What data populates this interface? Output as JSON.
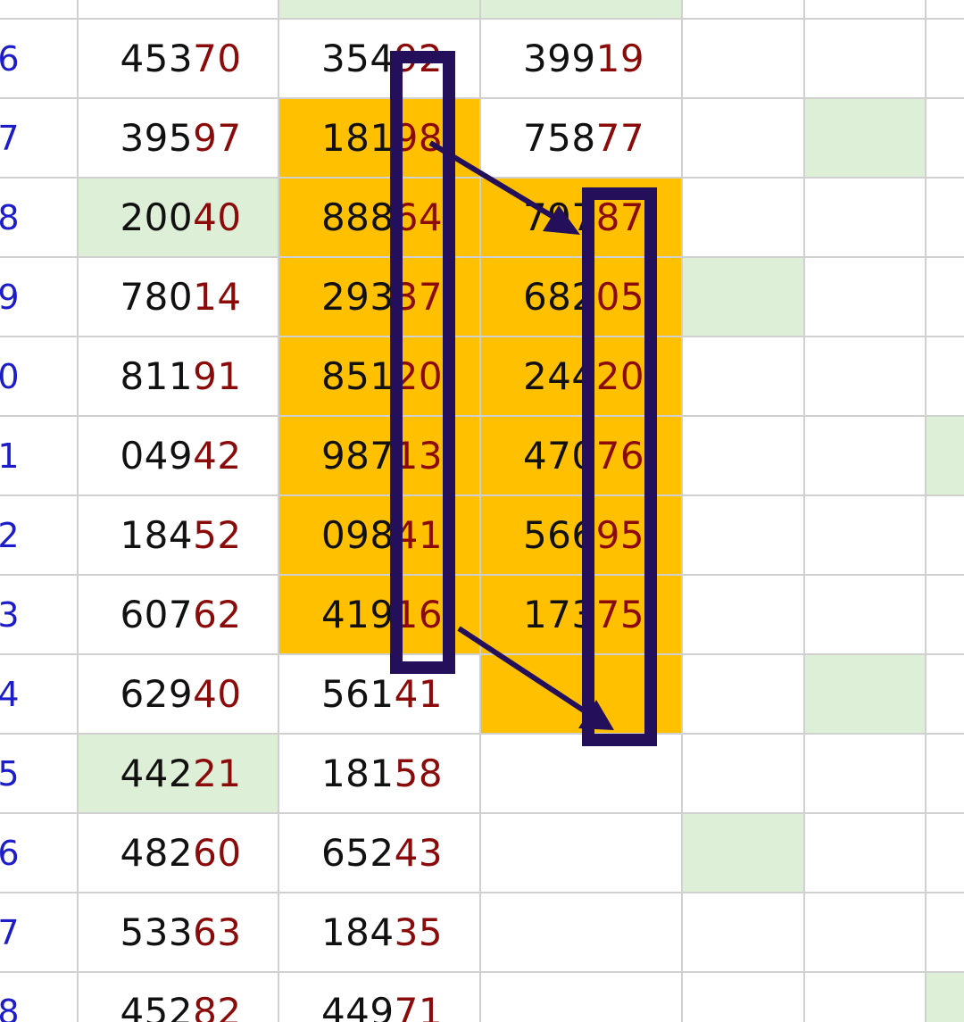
{
  "colors": {
    "highlight": "#ffc000",
    "green_fill": "#deefd8",
    "row_index": "#1c1cc8",
    "tail_digits": "#8b0a0a",
    "annotation": "#24105a"
  },
  "rows": [
    {
      "index": "6",
      "a": {
        "main": "453",
        "tail": "70"
      },
      "b": {
        "main": "354",
        "tail": "92"
      },
      "c": {
        "main": "399",
        "tail": "19"
      }
    },
    {
      "index": "7",
      "a": {
        "main": "395",
        "tail": "97"
      },
      "b": {
        "main": "181",
        "tail": "98"
      },
      "c": {
        "main": "758",
        "tail": "77"
      }
    },
    {
      "index": "8",
      "a": {
        "main": "200",
        "tail": "40"
      },
      "b": {
        "main": "888",
        "tail": "64"
      },
      "c": {
        "main": "797",
        "tail": "87"
      }
    },
    {
      "index": "9",
      "a": {
        "main": "780",
        "tail": "14"
      },
      "b": {
        "main": "293",
        "tail": "37"
      },
      "c": {
        "main": "682",
        "tail": "05"
      }
    },
    {
      "index": "0",
      "a": {
        "main": "811",
        "tail": "91"
      },
      "b": {
        "main": "851",
        "tail": "20"
      },
      "c": {
        "main": "244",
        "tail": "20"
      }
    },
    {
      "index": "1",
      "a": {
        "main": "049",
        "tail": "42"
      },
      "b": {
        "main": "987",
        "tail": "13"
      },
      "c": {
        "main": "470",
        "tail": "76"
      }
    },
    {
      "index": "2",
      "a": {
        "main": "184",
        "tail": "52"
      },
      "b": {
        "main": "098",
        "tail": "41"
      },
      "c": {
        "main": "566",
        "tail": "95"
      }
    },
    {
      "index": "3",
      "a": {
        "main": "607",
        "tail": "62"
      },
      "b": {
        "main": "419",
        "tail": "16"
      },
      "c": {
        "main": "173",
        "tail": "75"
      }
    },
    {
      "index": "4",
      "a": {
        "main": "629",
        "tail": "40"
      },
      "b": {
        "main": "561",
        "tail": "41"
      },
      "c": null
    },
    {
      "index": "5",
      "a": {
        "main": "442",
        "tail": "21"
      },
      "b": {
        "main": "181",
        "tail": "58"
      },
      "c": null
    },
    {
      "index": "6",
      "a": {
        "main": "482",
        "tail": "60"
      },
      "b": {
        "main": "652",
        "tail": "43"
      },
      "c": null
    },
    {
      "index": "7",
      "a": {
        "main": "533",
        "tail": "63"
      },
      "b": {
        "main": "184",
        "tail": "35"
      },
      "c": null
    },
    {
      "index": "8",
      "a": {
        "main": "452",
        "tail": "82"
      },
      "b": {
        "main": "449",
        "tail": "71"
      },
      "c": null
    }
  ]
}
